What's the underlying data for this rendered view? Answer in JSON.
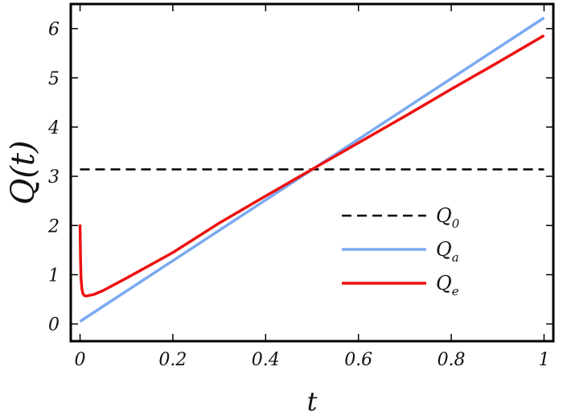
{
  "chart_data": {
    "type": "line",
    "xlabel": "t",
    "ylabel": "Q(t)",
    "xlim": [
      -0.02,
      1.02
    ],
    "ylim": [
      -0.35,
      6.5
    ],
    "x_ticks": [
      0,
      0.2,
      0.4,
      0.6,
      0.8,
      1
    ],
    "x_tick_labels": [
      "0",
      "0.2",
      "0.4",
      "0.6",
      "0.8",
      "1"
    ],
    "y_ticks": [
      0,
      1,
      2,
      3,
      4,
      5,
      6
    ],
    "y_tick_labels": [
      "0",
      "1",
      "2",
      "3",
      "4",
      "5",
      "6"
    ],
    "grid": false,
    "legend_position": "center-right",
    "series": [
      {
        "name": "Q_0",
        "label_base": "Q",
        "label_sub": "0",
        "color": "#000000",
        "style": "dashed",
        "x": [
          0,
          1
        ],
        "y": [
          3.14,
          3.14
        ]
      },
      {
        "name": "Q_a",
        "label_base": "Q",
        "label_sub": "a",
        "color": "#7aaaf0",
        "style": "solid",
        "x": [
          0,
          1
        ],
        "y": [
          0.05,
          6.22
        ]
      },
      {
        "name": "Q_e",
        "label_base": "Q",
        "label_sub": "e",
        "color": "#ee1111",
        "style": "solid",
        "x": [
          0,
          0.001,
          0.002,
          0.004,
          0.006,
          0.009,
          0.012,
          0.016,
          0.02,
          0.03,
          0.05,
          0.1,
          0.2,
          0.3,
          0.4,
          0.5,
          0.6,
          0.7,
          0.8,
          0.9,
          1.0
        ],
        "y": [
          2.02,
          1.35,
          0.95,
          0.72,
          0.62,
          0.58,
          0.57,
          0.57,
          0.58,
          0.6,
          0.68,
          0.93,
          1.45,
          2.05,
          2.6,
          3.14,
          3.68,
          4.22,
          4.77,
          5.31,
          5.86
        ]
      }
    ]
  }
}
